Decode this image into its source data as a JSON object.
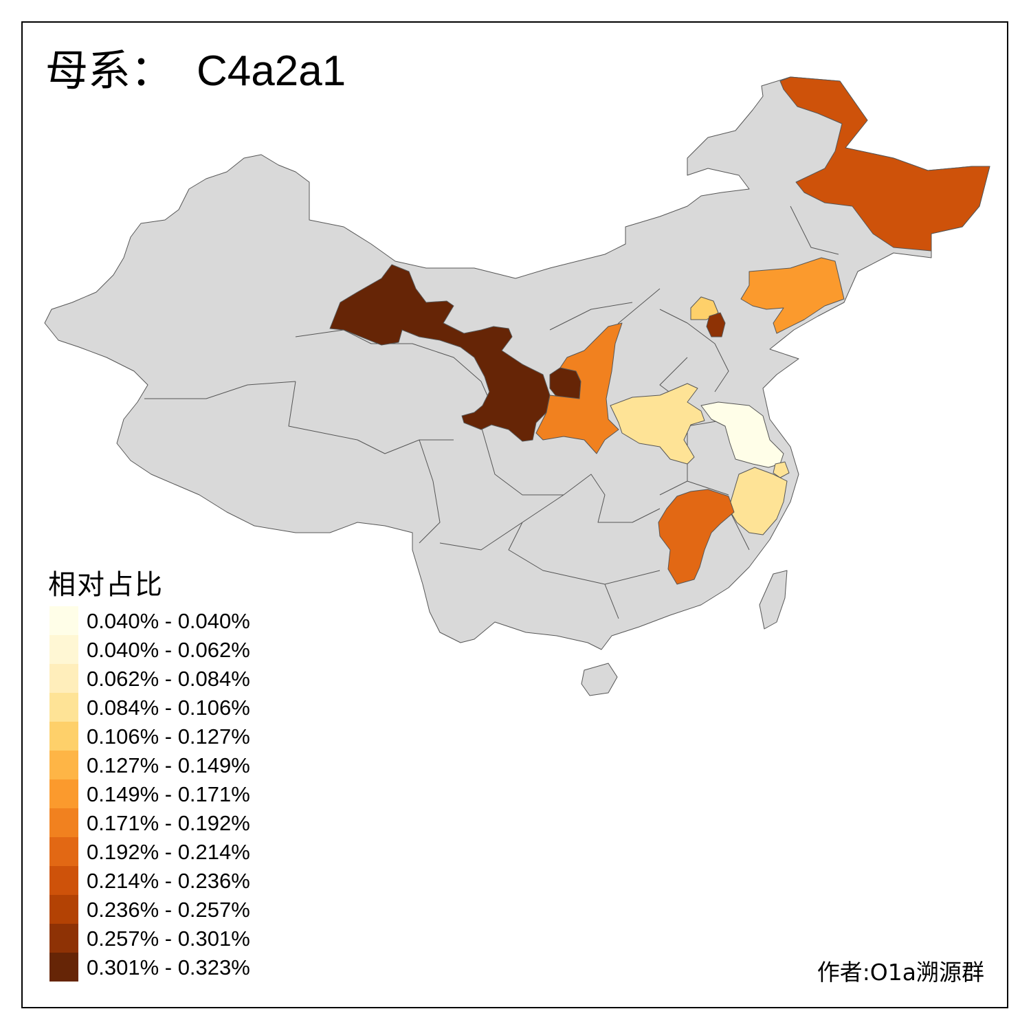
{
  "title": {
    "prefix": "母系：",
    "haplogroup": "C4a2a1"
  },
  "legend": {
    "title": "相对占比",
    "bins": [
      {
        "label": "0.040% - 0.040%",
        "color": "#FFFEE8"
      },
      {
        "label": "0.040% - 0.062%",
        "color": "#FFF7D4"
      },
      {
        "label": "0.062% - 0.084%",
        "color": "#FFEEBB"
      },
      {
        "label": "0.084% - 0.106%",
        "color": "#FEE396"
      },
      {
        "label": "0.106% - 0.127%",
        "color": "#FED06A"
      },
      {
        "label": "0.127% - 0.149%",
        "color": "#FEB546"
      },
      {
        "label": "0.149% - 0.171%",
        "color": "#FB9A2D"
      },
      {
        "label": "0.171% - 0.192%",
        "color": "#F1811F"
      },
      {
        "label": "0.192% - 0.214%",
        "color": "#E26814"
      },
      {
        "label": "0.214% - 0.236%",
        "color": "#CE520A"
      },
      {
        "label": "0.236% - 0.257%",
        "color": "#B34204"
      },
      {
        "label": "0.257% - 0.301%",
        "color": "#8E3205"
      },
      {
        "label": "0.301% - 0.323%",
        "color": "#662506"
      }
    ]
  },
  "map": {
    "base_color": "#D9D9D9",
    "border_color": "#555555",
    "regions": [
      {
        "name": "Heilongjiang",
        "bin": 9
      },
      {
        "name": "Liaoning",
        "bin": 6
      },
      {
        "name": "Beijing",
        "bin": 4
      },
      {
        "name": "Tianjin",
        "bin": 11
      },
      {
        "name": "Gansu",
        "bin": 12
      },
      {
        "name": "Ningxia",
        "bin": 12
      },
      {
        "name": "Shaanxi",
        "bin": 7
      },
      {
        "name": "Henan",
        "bin": 3
      },
      {
        "name": "Jiangsu",
        "bin": 0
      },
      {
        "name": "Shanghai",
        "bin": 3
      },
      {
        "name": "Zhejiang",
        "bin": 3
      },
      {
        "name": "Jiangxi",
        "bin": 8
      }
    ]
  },
  "credit": "作者:O1a溯源群"
}
